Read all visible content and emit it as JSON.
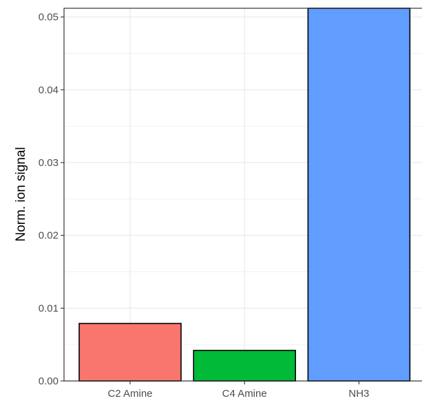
{
  "chart_data": {
    "type": "bar",
    "title": "",
    "xlabel": "",
    "ylabel": "Norm. ion signal",
    "categories": [
      "C2 Amine",
      "C4 Amine",
      "NH3"
    ],
    "values": [
      0.0079,
      0.0042,
      0.0512
    ],
    "colors": [
      "#F8766D",
      "#00BA38",
      "#619CFF"
    ],
    "ylim": [
      0,
      0.0512
    ],
    "yticks": [
      0,
      0.01,
      0.02,
      0.03,
      0.04,
      0.05
    ],
    "ytick_labels": [
      "0.00",
      "0.01",
      "0.02",
      "0.03",
      "0.04",
      "0.05"
    ],
    "grid": true,
    "legend": "none",
    "bar_border_color": "#000000",
    "panel_border_color": "#333333",
    "grid_color": "#ebebeb"
  }
}
